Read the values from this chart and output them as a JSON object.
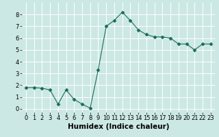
{
  "x": [
    0,
    1,
    2,
    3,
    4,
    5,
    6,
    7,
    8,
    9,
    10,
    11,
    12,
    13,
    14,
    15,
    16,
    17,
    18,
    19,
    20,
    21,
    22,
    23
  ],
  "y": [
    1.8,
    1.8,
    1.75,
    1.6,
    0.4,
    1.6,
    0.8,
    0.4,
    0.05,
    3.3,
    7.0,
    7.5,
    8.2,
    7.5,
    6.7,
    6.3,
    6.1,
    6.1,
    6.0,
    5.5,
    5.5,
    5.0,
    5.5,
    5.5
  ],
  "line_color": "#1a6b5a",
  "marker": "D",
  "marker_size": 2.5,
  "xlabel": "Humidex (Indice chaleur)",
  "ylabel": "",
  "xlim": [
    -0.5,
    23.5
  ],
  "ylim": [
    -0.3,
    9.0
  ],
  "yticks": [
    0,
    1,
    2,
    3,
    4,
    5,
    6,
    7,
    8
  ],
  "xticks": [
    0,
    1,
    2,
    3,
    4,
    5,
    6,
    7,
    8,
    9,
    10,
    11,
    12,
    13,
    14,
    15,
    16,
    17,
    18,
    19,
    20,
    21,
    22,
    23
  ],
  "bg_color": "#cce8e4",
  "grid_color": "#b8d8d4",
  "tick_label_fontsize": 6,
  "xlabel_fontsize": 7.5
}
